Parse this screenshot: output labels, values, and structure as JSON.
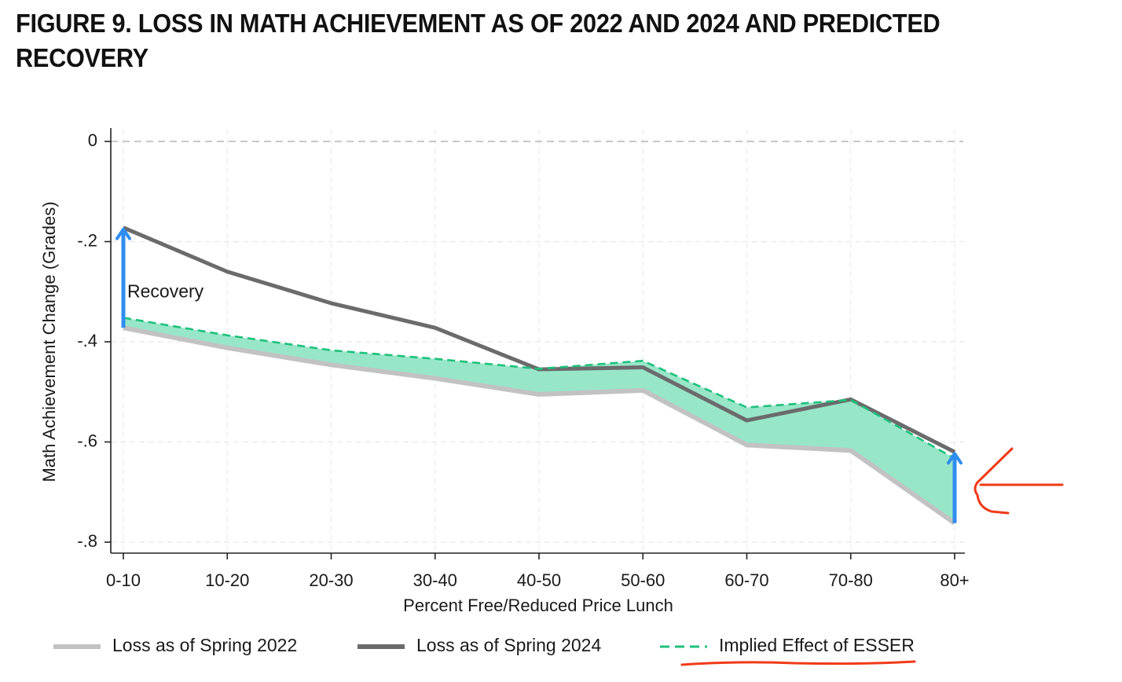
{
  "figure": {
    "title": "FIGURE 9. LOSS IN MATH ACHIEVEMENT AS OF 2022 AND 2024 AND PREDICTED RECOVERY"
  },
  "chart_data": {
    "type": "line",
    "title": "FIGURE 9. LOSS IN MATH ACHIEVEMENT AS OF 2022 AND 2024 AND PREDICTED RECOVERY",
    "xlabel": "Percent Free/Reduced Price Lunch",
    "ylabel": "Math Achievement Change (Grades)",
    "categories": [
      "0-10",
      "10-20",
      "20-30",
      "30-40",
      "40-50",
      "50-60",
      "60-70",
      "70-80",
      "80+"
    ],
    "ylim": [
      -0.8,
      0
    ],
    "yticks": [
      0,
      -0.2,
      -0.4,
      -0.6,
      -0.8
    ],
    "ytick_labels": [
      "0",
      "-.2",
      "-.4",
      "-.6",
      "-.8"
    ],
    "grid": true,
    "legend_position": "bottom",
    "series": [
      {
        "name": "Loss as of Spring 2022",
        "color": "#c2c2c2",
        "style": "solid",
        "values": [
          -0.372,
          -0.412,
          -0.446,
          -0.473,
          -0.505,
          -0.497,
          -0.606,
          -0.617,
          -0.762
        ]
      },
      {
        "name": "Loss as of Spring 2024",
        "color": "#6b6b6b",
        "style": "solid",
        "values": [
          -0.172,
          -0.26,
          -0.323,
          -0.372,
          -0.455,
          -0.451,
          -0.557,
          -0.515,
          -0.62
        ]
      },
      {
        "name": "Implied Effect of ESSER",
        "color": "#1ec07d",
        "style": "dashed",
        "values": [
          -0.352,
          -0.387,
          -0.417,
          -0.434,
          -0.454,
          -0.438,
          -0.531,
          -0.516,
          -0.633
        ]
      }
    ],
    "fill_between": {
      "lower_series": 0,
      "upper_series": 2,
      "color": "#98e6c8"
    },
    "annotations": [
      {
        "text": "Recovery",
        "category_index": 0,
        "y": -0.302
      }
    ],
    "arrows": [
      {
        "category_index": 0,
        "from_y": -0.372,
        "to_y": -0.172,
        "color": "#2e8df0"
      },
      {
        "category_index": 8,
        "from_y": -0.762,
        "to_y": -0.62,
        "color": "#2e8df0"
      }
    ],
    "markup_color": "#f03a17"
  }
}
